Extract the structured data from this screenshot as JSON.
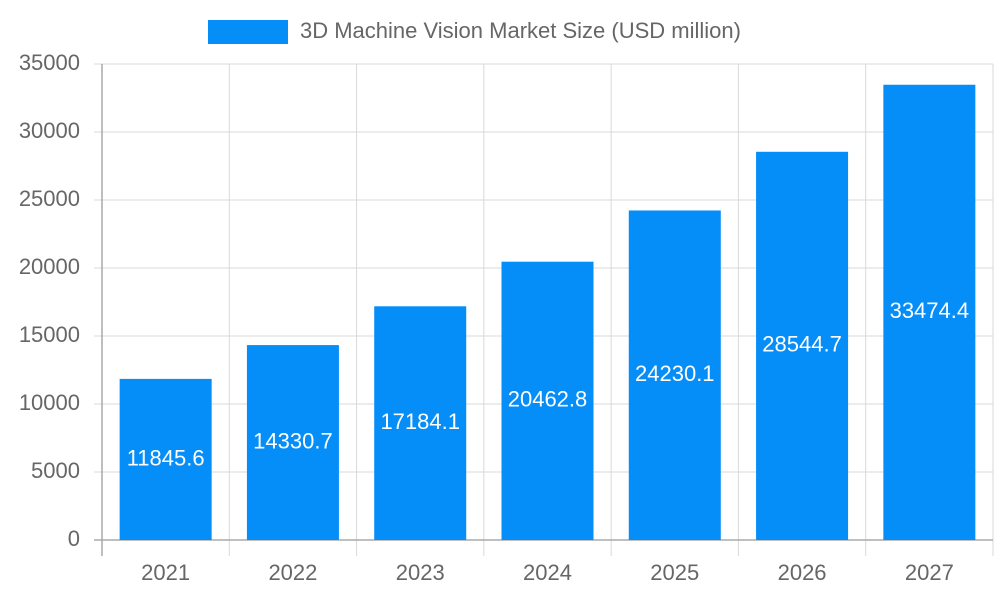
{
  "chart_data": {
    "type": "bar",
    "categories": [
      "2021",
      "2022",
      "2023",
      "2024",
      "2025",
      "2026",
      "2027"
    ],
    "series": [
      {
        "name": "3D Machine Vision Market Size (USD million)",
        "color": "#058df8",
        "values": [
          11845.6,
          14330.7,
          17184.1,
          20462.8,
          24230.1,
          28544.7,
          33474.4
        ]
      }
    ],
    "ylim": [
      0,
      35000
    ],
    "yticks": [
      0,
      5000,
      10000,
      15000,
      20000,
      25000,
      30000,
      35000
    ],
    "grid": true,
    "legend": "top"
  }
}
